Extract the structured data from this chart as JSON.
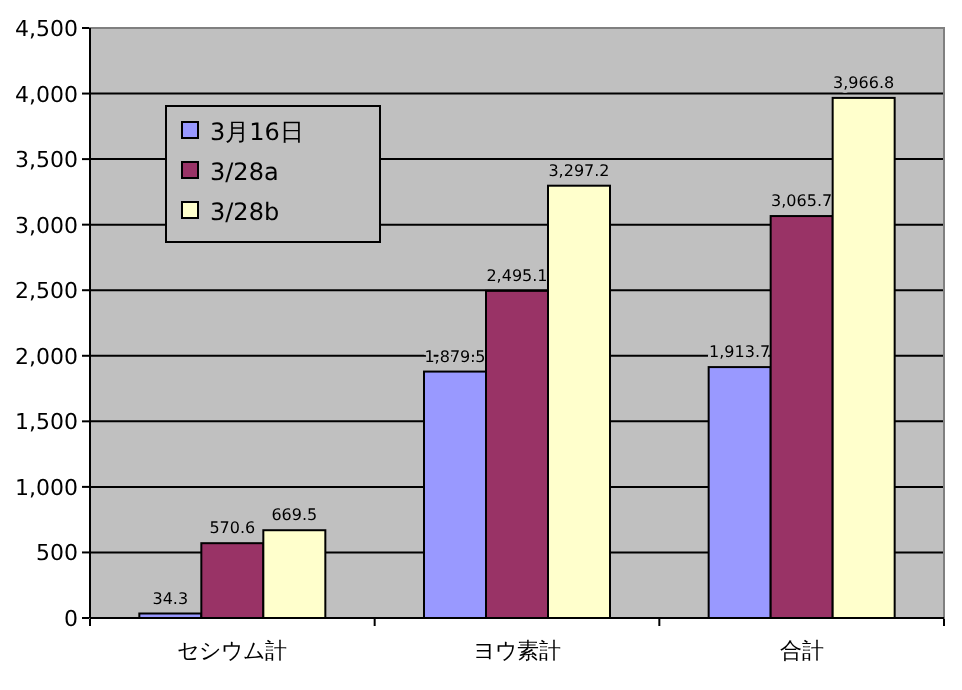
{
  "chart_data": {
    "type": "bar",
    "categories": [
      "セシウム計",
      "ヨウ素計",
      "合計"
    ],
    "series": [
      {
        "name": "3月16日",
        "color": "#9999ff",
        "values": [
          34.3,
          1879.5,
          1913.7
        ]
      },
      {
        "name": "3/28a",
        "color": "#993366",
        "values": [
          570.6,
          2495.1,
          3065.7
        ]
      },
      {
        "name": "3/28b",
        "color": "#ffffcc",
        "values": [
          669.5,
          3297.2,
          3966.8
        ]
      }
    ],
    "ylim": [
      0,
      4500
    ],
    "yticks": [
      {
        "value": 0,
        "label": "0"
      },
      {
        "value": 500,
        "label": "500"
      },
      {
        "value": 1000,
        "label": "1,000"
      },
      {
        "value": 1500,
        "label": "1,500"
      },
      {
        "value": 2000,
        "label": "2,000"
      },
      {
        "value": 2500,
        "label": "2,500"
      },
      {
        "value": 3000,
        "label": "3,000"
      },
      {
        "value": 3500,
        "label": "3,500"
      },
      {
        "value": 4000,
        "label": "4,000"
      },
      {
        "value": 4500,
        "label": "4,500"
      }
    ],
    "value_labels": [
      [
        "34.3",
        "1,879.5",
        "1,913.7"
      ],
      [
        "570.6",
        "2,495.1",
        "3,065.7"
      ],
      [
        "669.5",
        "3,297.2",
        "3,966.8"
      ]
    ],
    "grid": "y",
    "legend": "top left"
  }
}
